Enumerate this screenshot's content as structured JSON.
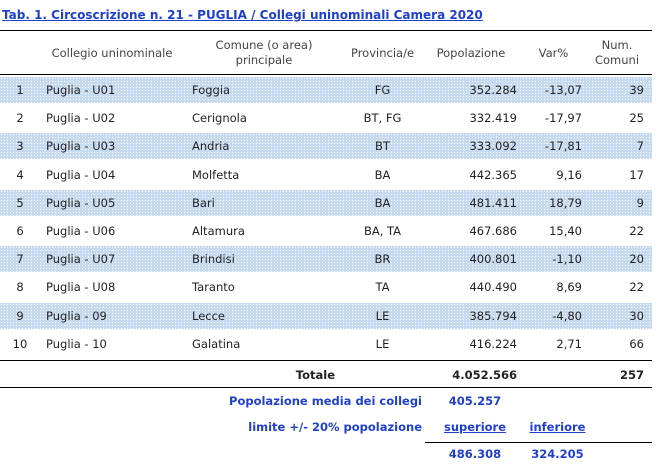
{
  "header": {
    "title": "Tab. 1. Circoscrizione n. 21 - PUGLIA / Collegi uninominali Camera 2020"
  },
  "table": {
    "columns": [
      "",
      "Collegio uninominale",
      "Comune (o area) principale",
      "Provincia/e",
      "Popolazione",
      "Var%",
      "Num. Comuni"
    ],
    "rows": [
      [
        "1",
        "Puglia - U01",
        "Foggia",
        "FG",
        "352.284",
        "-13,07",
        "39"
      ],
      [
        "2",
        "Puglia - U02",
        "Cerignola",
        "BT, FG",
        "332.419",
        "-17,97",
        "25"
      ],
      [
        "3",
        "Puglia - U03",
        "Andria",
        "BT",
        "333.092",
        "-17,81",
        "7"
      ],
      [
        "4",
        "Puglia - U04",
        "Molfetta",
        "BA",
        "442.365",
        "9,16",
        "17"
      ],
      [
        "5",
        "Puglia - U05",
        "Bari",
        "BA",
        "481.411",
        "18,79",
        "9"
      ],
      [
        "6",
        "Puglia - U06",
        "Altamura",
        "BA, TA",
        "467.686",
        "15,40",
        "22"
      ],
      [
        "7",
        "Puglia - U07",
        "Brindisi",
        "BR",
        "400.801",
        "-1,10",
        "20"
      ],
      [
        "8",
        "Puglia - U08",
        "Taranto",
        "TA",
        "440.490",
        "8,69",
        "22"
      ],
      [
        "9",
        "Puglia - 09",
        "Lecce",
        "LE",
        "385.794",
        "-4,80",
        "30"
      ],
      [
        "10",
        "Puglia - 10",
        "Galatina",
        "LE",
        "416.224",
        "2,71",
        "66"
      ]
    ]
  },
  "totals": {
    "label": "Totale",
    "population": "4.052.566",
    "comuni": "257"
  },
  "average": {
    "label": "Popolazione media dei collegi",
    "value": "405.257"
  },
  "limits": {
    "label": "limite +/- 20% popolazione",
    "upper_label": "superiore",
    "lower_label": "inferiore",
    "upper": "486.308",
    "lower": "324.205"
  }
}
